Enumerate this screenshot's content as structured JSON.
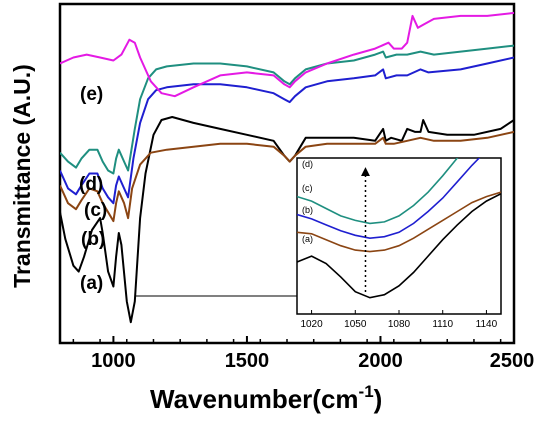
{
  "chart_data": {
    "type": "line",
    "xlabel": "Wavenumber",
    "xlabel_unit": "cm",
    "xlabel_unit_exp": "-1",
    "ylabel": "Transmittance (A.U.)",
    "xlim": [
      800,
      2500
    ],
    "xticks": [
      "1000",
      "1500",
      "2000",
      "2500"
    ],
    "xtick_values": [
      1000,
      1500,
      2000,
      2500
    ],
    "y_ticks_shown": false,
    "series": [
      {
        "label": "(a)",
        "color": "#000000",
        "points": [
          [
            800,
            0.42
          ],
          [
            820,
            0.33
          ],
          [
            850,
            0.24
          ],
          [
            870,
            0.22
          ],
          [
            890,
            0.27
          ],
          [
            920,
            0.36
          ],
          [
            950,
            0.4
          ],
          [
            960,
            0.35
          ],
          [
            980,
            0.22
          ],
          [
            1000,
            0.17
          ],
          [
            1010,
            0.27
          ],
          [
            1020,
            0.35
          ],
          [
            1030,
            0.31
          ],
          [
            1050,
            0.12
          ],
          [
            1065,
            0.05
          ],
          [
            1080,
            0.12
          ],
          [
            1100,
            0.4
          ],
          [
            1120,
            0.55
          ],
          [
            1150,
            0.68
          ],
          [
            1180,
            0.73
          ],
          [
            1220,
            0.74
          ],
          [
            1300,
            0.72
          ],
          [
            1400,
            0.7
          ],
          [
            1500,
            0.68
          ],
          [
            1600,
            0.66
          ],
          [
            1640,
            0.61
          ],
          [
            1660,
            0.59
          ],
          [
            1680,
            0.61
          ],
          [
            1720,
            0.67
          ],
          [
            1800,
            0.67
          ],
          [
            1900,
            0.67
          ],
          [
            1980,
            0.66
          ],
          [
            2010,
            0.7
          ],
          [
            2020,
            0.66
          ],
          [
            2040,
            0.67
          ],
          [
            2080,
            0.66
          ],
          [
            2100,
            0.7
          ],
          [
            2130,
            0.69
          ],
          [
            2150,
            0.69
          ],
          [
            2160,
            0.73
          ],
          [
            2180,
            0.69
          ],
          [
            2250,
            0.68
          ],
          [
            2350,
            0.68
          ],
          [
            2450,
            0.7
          ],
          [
            2500,
            0.73
          ]
        ]
      },
      {
        "label": "(b)",
        "color": "#8b4513",
        "points": [
          [
            800,
            0.51
          ],
          [
            830,
            0.45
          ],
          [
            860,
            0.43
          ],
          [
            880,
            0.46
          ],
          [
            910,
            0.5
          ],
          [
            940,
            0.49
          ],
          [
            960,
            0.45
          ],
          [
            980,
            0.42
          ],
          [
            1000,
            0.39
          ],
          [
            1010,
            0.45
          ],
          [
            1020,
            0.49
          ],
          [
            1040,
            0.45
          ],
          [
            1055,
            0.4
          ],
          [
            1070,
            0.5
          ],
          [
            1100,
            0.58
          ],
          [
            1140,
            0.62
          ],
          [
            1200,
            0.63
          ],
          [
            1300,
            0.64
          ],
          [
            1400,
            0.65
          ],
          [
            1500,
            0.65
          ],
          [
            1600,
            0.64
          ],
          [
            1640,
            0.61
          ],
          [
            1660,
            0.59
          ],
          [
            1680,
            0.61
          ],
          [
            1720,
            0.64
          ],
          [
            1800,
            0.65
          ],
          [
            1900,
            0.65
          ],
          [
            1980,
            0.65
          ],
          [
            2010,
            0.67
          ],
          [
            2020,
            0.65
          ],
          [
            2050,
            0.65
          ],
          [
            2100,
            0.66
          ],
          [
            2150,
            0.67
          ],
          [
            2200,
            0.66
          ],
          [
            2300,
            0.66
          ],
          [
            2400,
            0.67
          ],
          [
            2500,
            0.69
          ]
        ]
      },
      {
        "label": "(c)",
        "color": "#1f1fd0",
        "points": [
          [
            800,
            0.56
          ],
          [
            830,
            0.5
          ],
          [
            860,
            0.48
          ],
          [
            880,
            0.51
          ],
          [
            910,
            0.55
          ],
          [
            940,
            0.55
          ],
          [
            960,
            0.5
          ],
          [
            980,
            0.47
          ],
          [
            1000,
            0.45
          ],
          [
            1010,
            0.51
          ],
          [
            1020,
            0.54
          ],
          [
            1040,
            0.5
          ],
          [
            1055,
            0.47
          ],
          [
            1075,
            0.6
          ],
          [
            1100,
            0.72
          ],
          [
            1130,
            0.8
          ],
          [
            1160,
            0.83
          ],
          [
            1200,
            0.84
          ],
          [
            1300,
            0.85
          ],
          [
            1400,
            0.85
          ],
          [
            1500,
            0.84
          ],
          [
            1600,
            0.82
          ],
          [
            1640,
            0.8
          ],
          [
            1660,
            0.79
          ],
          [
            1680,
            0.81
          ],
          [
            1720,
            0.84
          ],
          [
            1800,
            0.86
          ],
          [
            1900,
            0.87
          ],
          [
            1980,
            0.88
          ],
          [
            2010,
            0.9
          ],
          [
            2020,
            0.87
          ],
          [
            2060,
            0.88
          ],
          [
            2100,
            0.88
          ],
          [
            2150,
            0.9
          ],
          [
            2180,
            0.89
          ],
          [
            2300,
            0.9
          ],
          [
            2400,
            0.92
          ],
          [
            2500,
            0.94
          ]
        ]
      },
      {
        "label": "(d)",
        "color": "#1f8f80",
        "points": [
          [
            800,
            0.62
          ],
          [
            830,
            0.59
          ],
          [
            860,
            0.57
          ],
          [
            880,
            0.6
          ],
          [
            910,
            0.63
          ],
          [
            940,
            0.63
          ],
          [
            960,
            0.59
          ],
          [
            980,
            0.56
          ],
          [
            1000,
            0.55
          ],
          [
            1010,
            0.6
          ],
          [
            1020,
            0.63
          ],
          [
            1040,
            0.59
          ],
          [
            1055,
            0.56
          ],
          [
            1080,
            0.7
          ],
          [
            1100,
            0.8
          ],
          [
            1130,
            0.87
          ],
          [
            1160,
            0.9
          ],
          [
            1200,
            0.91
          ],
          [
            1300,
            0.92
          ],
          [
            1400,
            0.92
          ],
          [
            1500,
            0.91
          ],
          [
            1600,
            0.89
          ],
          [
            1640,
            0.86
          ],
          [
            1660,
            0.85
          ],
          [
            1680,
            0.87
          ],
          [
            1720,
            0.9
          ],
          [
            1800,
            0.92
          ],
          [
            1900,
            0.93
          ],
          [
            1980,
            0.95
          ],
          [
            2010,
            0.96
          ],
          [
            2020,
            0.94
          ],
          [
            2060,
            0.95
          ],
          [
            2100,
            0.95
          ],
          [
            2150,
            0.96
          ],
          [
            2200,
            0.95
          ],
          [
            2300,
            0.96
          ],
          [
            2400,
            0.97
          ],
          [
            2500,
            0.98
          ]
        ]
      },
      {
        "label": "(e)",
        "color": "#e41ae4",
        "points": [
          [
            800,
            0.92
          ],
          [
            850,
            0.94
          ],
          [
            900,
            0.95
          ],
          [
            950,
            0.94
          ],
          [
            1000,
            0.93
          ],
          [
            1030,
            0.95
          ],
          [
            1060,
            1.0
          ],
          [
            1080,
            0.99
          ],
          [
            1100,
            0.94
          ],
          [
            1140,
            0.86
          ],
          [
            1180,
            0.82
          ],
          [
            1230,
            0.81
          ],
          [
            1300,
            0.84
          ],
          [
            1400,
            0.88
          ],
          [
            1500,
            0.89
          ],
          [
            1600,
            0.88
          ],
          [
            1640,
            0.85
          ],
          [
            1660,
            0.84
          ],
          [
            1680,
            0.86
          ],
          [
            1720,
            0.89
          ],
          [
            1800,
            0.92
          ],
          [
            1900,
            0.95
          ],
          [
            1980,
            0.97
          ],
          [
            2030,
            0.99
          ],
          [
            2050,
            0.97
          ],
          [
            2080,
            0.97
          ],
          [
            2100,
            0.99
          ],
          [
            2120,
            1.08
          ],
          [
            2140,
            1.04
          ],
          [
            2160,
            1.05
          ],
          [
            2200,
            1.07
          ],
          [
            2300,
            1.08
          ],
          [
            2400,
            1.08
          ],
          [
            2500,
            1.09
          ]
        ]
      }
    ],
    "inset": {
      "xlim": [
        1010,
        1150
      ],
      "xticks": [
        "1020",
        "1050",
        "1080",
        "1110",
        "1140"
      ],
      "xtick_values": [
        1020,
        1050,
        1080,
        1110,
        1140
      ],
      "series": [
        {
          "label": "(a)",
          "color": "#000000",
          "points": [
            [
              1010,
              0.3
            ],
            [
              1020,
              0.34
            ],
            [
              1030,
              0.29
            ],
            [
              1040,
              0.2
            ],
            [
              1050,
              0.1
            ],
            [
              1060,
              0.06
            ],
            [
              1070,
              0.08
            ],
            [
              1080,
              0.14
            ],
            [
              1090,
              0.23
            ],
            [
              1100,
              0.34
            ],
            [
              1110,
              0.45
            ],
            [
              1120,
              0.55
            ],
            [
              1130,
              0.64
            ],
            [
              1140,
              0.71
            ],
            [
              1150,
              0.76
            ]
          ]
        },
        {
          "label": "(b)",
          "color": "#8b4513",
          "points": [
            [
              1010,
              0.5
            ],
            [
              1020,
              0.49
            ],
            [
              1030,
              0.45
            ],
            [
              1040,
              0.41
            ],
            [
              1050,
              0.38
            ],
            [
              1060,
              0.37
            ],
            [
              1070,
              0.38
            ],
            [
              1080,
              0.41
            ],
            [
              1090,
              0.46
            ],
            [
              1100,
              0.52
            ],
            [
              1110,
              0.58
            ],
            [
              1120,
              0.64
            ],
            [
              1130,
              0.7
            ],
            [
              1140,
              0.74
            ],
            [
              1150,
              0.77
            ]
          ]
        },
        {
          "label": "(c)",
          "color": "#1f1fd0",
          "points": [
            [
              1010,
              0.62
            ],
            [
              1020,
              0.59
            ],
            [
              1030,
              0.55
            ],
            [
              1040,
              0.51
            ],
            [
              1050,
              0.48
            ],
            [
              1060,
              0.46
            ],
            [
              1070,
              0.47
            ],
            [
              1080,
              0.5
            ],
            [
              1090,
              0.56
            ],
            [
              1100,
              0.64
            ],
            [
              1110,
              0.73
            ],
            [
              1120,
              0.84
            ],
            [
              1130,
              0.95
            ],
            [
              1140,
              1.05
            ],
            [
              1150,
              1.1
            ]
          ]
        },
        {
          "label": "(d)",
          "color": "#1f8f80",
          "points": [
            [
              1010,
              0.74
            ],
            [
              1020,
              0.71
            ],
            [
              1030,
              0.66
            ],
            [
              1040,
              0.61
            ],
            [
              1050,
              0.58
            ],
            [
              1060,
              0.56
            ],
            [
              1070,
              0.57
            ],
            [
              1080,
              0.61
            ],
            [
              1090,
              0.68
            ],
            [
              1100,
              0.77
            ],
            [
              1110,
              0.88
            ],
            [
              1120,
              1.0
            ],
            [
              1130,
              1.1
            ],
            [
              1140,
              1.15
            ],
            [
              1150,
              1.18
            ]
          ]
        }
      ]
    },
    "grid": false,
    "annotations": {
      "arrow_main_to_inset_from_x": 1065,
      "dotted_arrow_inset_x": 1057
    }
  }
}
